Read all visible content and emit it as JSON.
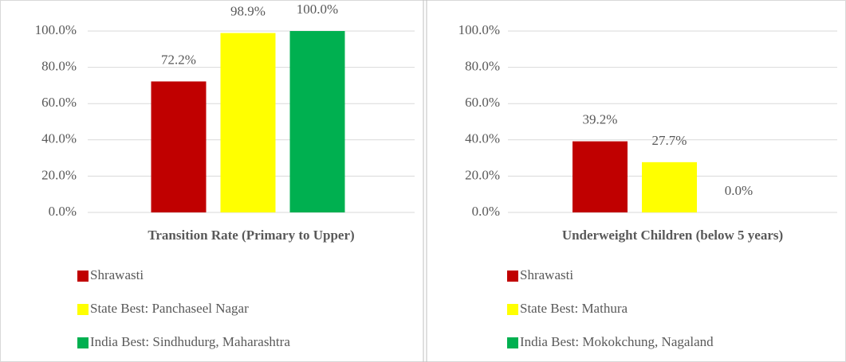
{
  "chart_data": [
    {
      "type": "bar",
      "categories": [
        "Transition Rate (Primary to Upper)"
      ],
      "series": [
        {
          "name": "Shrawasti",
          "color": "#c00000",
          "values": [
            72.2
          ],
          "value_labels": [
            "72.2%"
          ]
        },
        {
          "name": "State Best: Panchaseel Nagar",
          "color": "#ffff00",
          "values": [
            98.9
          ],
          "value_labels": [
            "98.9%"
          ]
        },
        {
          "name": "India Best: Sindhudurg, Maharashtra",
          "color": "#00b050",
          "values": [
            100.0
          ],
          "value_labels": [
            "100.0%"
          ]
        }
      ],
      "ylim": [
        0,
        100
      ],
      "yticks": [
        {
          "value": 0,
          "label": "0.0%"
        },
        {
          "value": 20,
          "label": "20.0%"
        },
        {
          "value": 40,
          "label": "40.0%"
        },
        {
          "value": 60,
          "label": "60.0%"
        },
        {
          "value": 80,
          "label": "80.0%"
        },
        {
          "value": 100,
          "label": "100.0%"
        }
      ],
      "grid": true
    },
    {
      "type": "bar",
      "categories": [
        "Underweight Children (below 5 years)"
      ],
      "series": [
        {
          "name": "Shrawasti",
          "color": "#c00000",
          "values": [
            39.2
          ],
          "value_labels": [
            "39.2%"
          ]
        },
        {
          "name": "State Best: Mathura",
          "color": "#ffff00",
          "values": [
            27.7
          ],
          "value_labels": [
            "27.7%"
          ]
        },
        {
          "name": "India Best: Mokokchung, Nagaland",
          "color": "#00b050",
          "values": [
            0.0
          ],
          "value_labels": [
            "0.0%"
          ]
        }
      ],
      "ylim": [
        0,
        100
      ],
      "yticks": [
        {
          "value": 0,
          "label": "0.0%"
        },
        {
          "value": 20,
          "label": "20.0%"
        },
        {
          "value": 40,
          "label": "40.0%"
        },
        {
          "value": 60,
          "label": "60.0%"
        },
        {
          "value": 80,
          "label": "80.0%"
        },
        {
          "value": 100,
          "label": "100.0%"
        }
      ],
      "grid": true
    }
  ]
}
